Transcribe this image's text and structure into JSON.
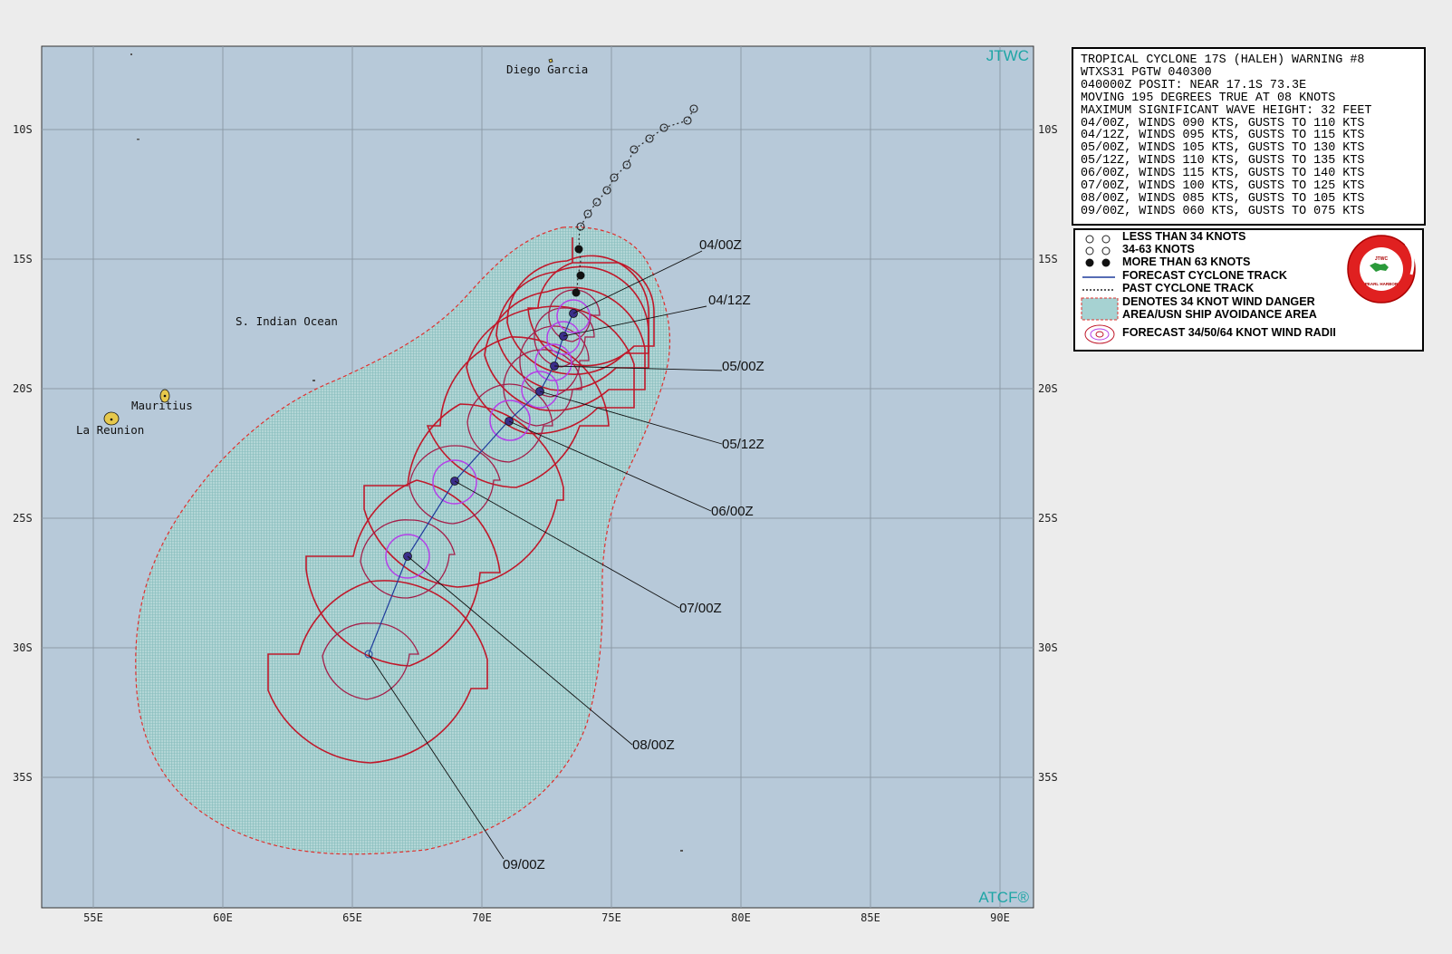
{
  "header": {
    "agency_label": "JTWC",
    "footer_label": "ATCF®"
  },
  "warning": {
    "lines": [
      "TROPICAL CYCLONE 17S (HALEH) WARNING #8",
      "WTXS31 PGTW 040300",
      "040000Z POSIT: NEAR 17.1S 73.3E",
      "MOVING 195 DEGREES TRUE AT 08 KNOTS",
      "MAXIMUM SIGNIFICANT WAVE HEIGHT: 32 FEET",
      "04/00Z, WINDS 090 KTS, GUSTS TO 110 KTS",
      "04/12Z, WINDS 095 KTS, GUSTS TO 115 KTS",
      "05/00Z, WINDS 105 KTS, GUSTS TO 130 KTS",
      "05/12Z, WINDS 110 KTS, GUSTS TO 135 KTS",
      "06/00Z, WINDS 115 KTS, GUSTS TO 140 KTS",
      "07/00Z, WINDS 100 KTS, GUSTS TO 125 KTS",
      "08/00Z, WINDS 085 KTS, GUSTS TO 105 KTS",
      "09/00Z, WINDS 060 KTS, GUSTS TO 075 KTS"
    ]
  },
  "legend": {
    "less_34": "LESS THAN 34 KNOTS",
    "kt34_63": "34-63 KNOTS",
    "more_63": "MORE THAN 63 KNOTS",
    "forecast_track": "FORECAST CYCLONE TRACK",
    "past_track": "PAST CYCLONE TRACK",
    "danger_area_1": "DENOTES 34 KNOT WIND DANGER",
    "danger_area_2": "AREA/USN SHIP AVOIDANCE AREA",
    "wind_radii": "FORECAST 34/50/64 KNOT WIND RADII",
    "seal_label": "JOINT TYPHOON WARNING CENTER",
    "seal_sub": "PEARL HARBOR HAWAII"
  },
  "axes": {
    "lon_ticks": [
      "55E",
      "60E",
      "65E",
      "70E",
      "75E",
      "80E",
      "85E",
      "90E"
    ],
    "lat_ticks": [
      "10S",
      "15S",
      "20S",
      "25S",
      "30S",
      "35S"
    ]
  },
  "places": {
    "diego_garcia": "Diego Garcia",
    "indian_ocean": "S. Indian Ocean",
    "mauritius": "Mauritius",
    "la_reunion": "La Reunion"
  },
  "forecast_labels": [
    "04/00Z",
    "04/12Z",
    "05/00Z",
    "05/12Z",
    "06/00Z",
    "07/00Z",
    "08/00Z",
    "09/00Z"
  ],
  "colors": {
    "ocean": "#b7c9d9",
    "danger_fill": "#a6d2d2",
    "danger_border": "#e0302e",
    "radii": "#c0182a",
    "radii_inner": "#a41f4a",
    "radii_64": "#b440e8",
    "forecast_track": "#1f3b9c",
    "land": "#e6c84c",
    "jtwc_text": "#1ea5a5"
  }
}
